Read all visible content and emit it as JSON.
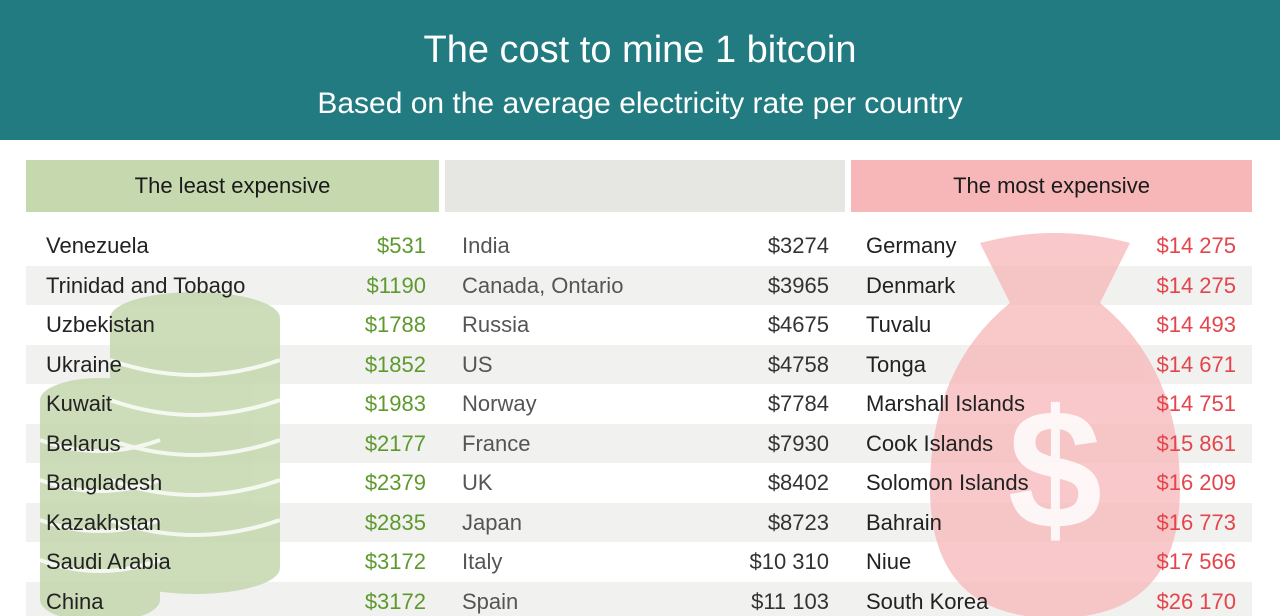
{
  "header": {
    "title": "The cost to mine 1 bitcoin",
    "subtitle": "Based on the average electricity rate per country"
  },
  "columns": {
    "left_title": "The least expensive",
    "mid_title": "",
    "right_title": "The most expensive"
  },
  "colors": {
    "header_bg": "#217b80",
    "least_accent": "#5d9a2e",
    "most_accent": "#e4454b"
  },
  "icons": {
    "left_decoration": "coin-stack-icon",
    "right_decoration": "money-bag-icon"
  },
  "least": [
    {
      "country": "Venezuela",
      "cost": "$531"
    },
    {
      "country": "Trinidad and Tobago",
      "cost": "$1190"
    },
    {
      "country": "Uzbekistan",
      "cost": "$1788"
    },
    {
      "country": "Ukraine",
      "cost": "$1852"
    },
    {
      "country": "Kuwait",
      "cost": "$1983"
    },
    {
      "country": "Belarus",
      "cost": "$2177"
    },
    {
      "country": "Bangladesh",
      "cost": "$2379"
    },
    {
      "country": "Kazakhstan",
      "cost": "$2835"
    },
    {
      "country": "Saudi Arabia",
      "cost": "$3172"
    },
    {
      "country": "China",
      "cost": "$3172"
    }
  ],
  "middle": [
    {
      "country": "India",
      "cost": "$3274"
    },
    {
      "country": "Canada, Ontario",
      "cost": "$3965"
    },
    {
      "country": "Russia",
      "cost": "$4675"
    },
    {
      "country": "US",
      "cost": "$4758"
    },
    {
      "country": "Norway",
      "cost": "$7784"
    },
    {
      "country": "France",
      "cost": "$7930"
    },
    {
      "country": "UK",
      "cost": "$8402"
    },
    {
      "country": "Japan",
      "cost": "$8723"
    },
    {
      "country": "Italy",
      "cost": "$10 310"
    },
    {
      "country": "Spain",
      "cost": "$11 103"
    }
  ],
  "most": [
    {
      "country": "Germany",
      "cost": "$14 275"
    },
    {
      "country": "Denmark",
      "cost": "$14 275"
    },
    {
      "country": "Tuvalu",
      "cost": "$14 493"
    },
    {
      "country": "Tonga",
      "cost": "$14 671"
    },
    {
      "country": "Marshall Islands",
      "cost": "$14 751"
    },
    {
      "country": "Cook Islands",
      "cost": "$15 861"
    },
    {
      "country": "Solomon Islands",
      "cost": "$16 209"
    },
    {
      "country": "Bahrain",
      "cost": "$16 773"
    },
    {
      "country": "Niue",
      "cost": "$17 566"
    },
    {
      "country": "South Korea",
      "cost": "$26 170"
    }
  ]
}
